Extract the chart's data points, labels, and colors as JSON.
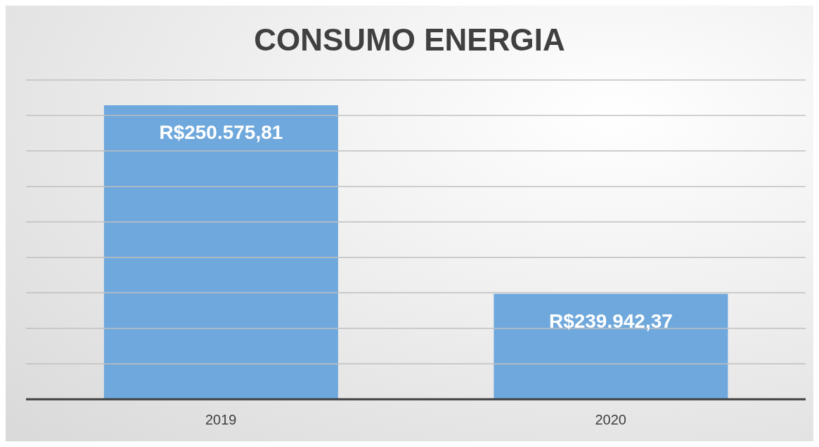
{
  "chart_data": {
    "type": "bar",
    "title": "CONSUMO ENERGIA",
    "categories": [
      "2019",
      "2020"
    ],
    "values": [
      250575.81,
      239942.37
    ],
    "value_labels": [
      "R$250.575,81",
      "R$239.942,37"
    ],
    "color": "#6fa8dc",
    "ylim": [
      234000,
      252000
    ],
    "yticks": [
      {
        "value": 234000,
        "label": null
      },
      {
        "value": 236000,
        "label": null
      },
      {
        "value": 238000,
        "label": null
      },
      {
        "value": 240000,
        "label": null
      },
      {
        "value": 242000,
        "label": null
      },
      {
        "value": 244000,
        "label": null
      },
      {
        "value": 246000,
        "label": null
      },
      {
        "value": 248000,
        "label": null
      },
      {
        "value": 250000,
        "label": null
      },
      {
        "value": 252000,
        "label": null
      }
    ],
    "grid": "y",
    "tick_labels": "x",
    "legend": false
  }
}
